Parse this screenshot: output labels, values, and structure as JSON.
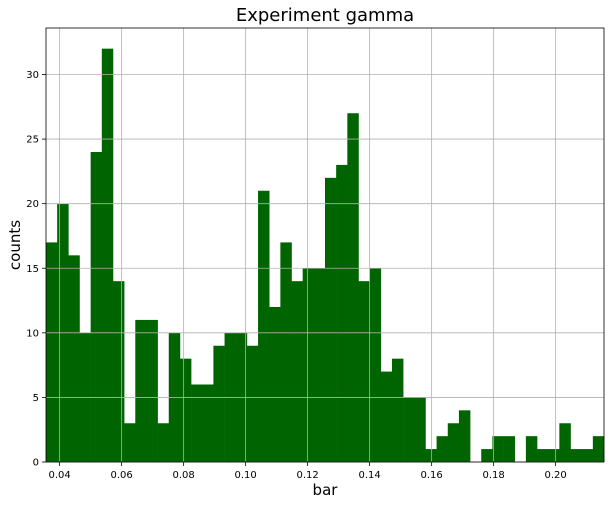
{
  "chart_data": {
    "type": "bar",
    "title": "Experiment gamma",
    "xlabel": "bar",
    "ylabel": "counts",
    "xlim": [
      0.0356,
      0.2156
    ],
    "ylim": [
      0,
      33.6
    ],
    "bin_width": 0.0036,
    "x_ticks": [
      0.04,
      0.06,
      0.08,
      0.1,
      0.12,
      0.14,
      0.16,
      0.18,
      0.2
    ],
    "x_tick_labels": [
      "0.04",
      "0.06",
      "0.08",
      "0.10",
      "0.12",
      "0.14",
      "0.16",
      "0.18",
      "0.20"
    ],
    "y_ticks": [
      0,
      5,
      10,
      15,
      20,
      25,
      30
    ],
    "y_tick_labels": [
      "0",
      "5",
      "10",
      "15",
      "20",
      "25",
      "30"
    ],
    "grid": true,
    "bar_color": "#006400",
    "bins_left": [
      0.0356,
      0.0392,
      0.0428,
      0.0464,
      0.05,
      0.0536,
      0.0572,
      0.0608,
      0.0644,
      0.068,
      0.0716,
      0.0752,
      0.0788,
      0.0824,
      0.086,
      0.0896,
      0.0932,
      0.0968,
      0.1004,
      0.104,
      0.1076,
      0.1112,
      0.1148,
      0.1184,
      0.122,
      0.1256,
      0.1292,
      0.1328,
      0.1364,
      0.14,
      0.1436,
      0.1472,
      0.1508,
      0.1544,
      0.158,
      0.1616,
      0.1652,
      0.1688,
      0.1724,
      0.176,
      0.1796,
      0.1832,
      0.1868,
      0.1904,
      0.194,
      0.1976,
      0.2012,
      0.2048,
      0.2084,
      0.212
    ],
    "counts": [
      17,
      20,
      16,
      10,
      24,
      32,
      14,
      3,
      11,
      11,
      3,
      10,
      8,
      6,
      6,
      9,
      10,
      10,
      9,
      21,
      12,
      17,
      14,
      15,
      15,
      22,
      23,
      27,
      14,
      15,
      7,
      8,
      5,
      5,
      1,
      2,
      3,
      4,
      0,
      1,
      2,
      2,
      0,
      2,
      1,
      1,
      3,
      1,
      1,
      2
    ]
  }
}
